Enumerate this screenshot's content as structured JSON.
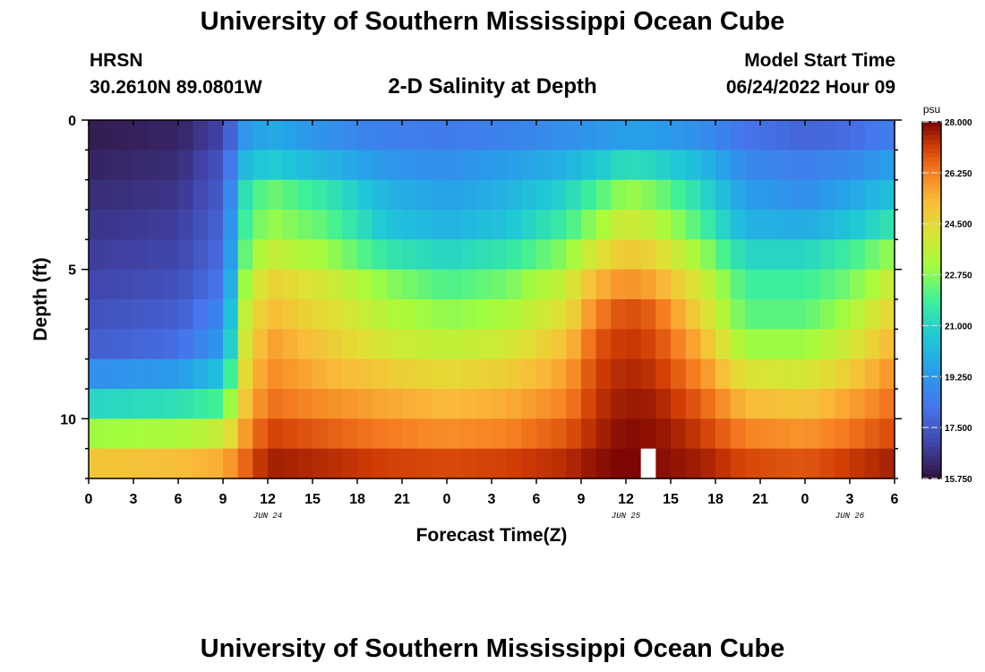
{
  "header": {
    "title": "University of Southern Mississippi Ocean Cube",
    "station": "HRSN",
    "coordinates": "30.2610N  89.0801W",
    "chart_title": "2-D Salinity at Depth",
    "model_start_label": "Model Start Time",
    "model_start_value": "06/24/2022 Hour 09"
  },
  "footer": {
    "title": "University of Southern Mississippi Ocean Cube"
  },
  "chart_data": {
    "type": "heatmap",
    "title": "2-D Salinity at Depth",
    "xlabel": "Forecast Time(Z)",
    "ylabel": "Depth (ft)",
    "x_tick_labels": [
      "0",
      "3",
      "6",
      "9",
      "12",
      "15",
      "18",
      "21",
      "0",
      "3",
      "6",
      "9",
      "12",
      "15",
      "18",
      "21",
      "0",
      "3",
      "6"
    ],
    "x_range_hours": [
      0,
      54
    ],
    "date_labels": [
      {
        "text": "JUN 24",
        "hour": 12
      },
      {
        "text": "JUN 25",
        "hour": 36
      },
      {
        "text": "JUN 26",
        "hour": 51
      }
    ],
    "y_tick_labels": [
      {
        "text": "0",
        "depth": 0
      },
      {
        "text": "5",
        "depth": 5
      },
      {
        "text": "10",
        "depth": 10
      }
    ],
    "ylim": [
      12,
      0
    ],
    "depth_layers_ft": [
      0.5,
      1.5,
      2.5,
      3.5,
      4.5,
      5.5,
      6.5,
      7.5,
      8.5,
      9.5,
      10.5,
      11.5
    ],
    "colorbar": {
      "unit": "psu",
      "min": 15.75,
      "max": 28.0,
      "tick_labels": [
        "28.000",
        "26.250",
        "24.500",
        "22.750",
        "21.000",
        "19.250",
        "17.500",
        "15.750"
      ]
    },
    "time_knots_hours": [
      0,
      6,
      9,
      10.5,
      12,
      16,
      20,
      24,
      28,
      32,
      34,
      36,
      38,
      41,
      44,
      48,
      51,
      54
    ],
    "salinity_psu_rows": [
      [
        16.0,
        16.2,
        17.0,
        19.2,
        19.8,
        19.0,
        18.5,
        18.4,
        18.6,
        19.0,
        19.2,
        19.5,
        19.4,
        19.0,
        18.2,
        17.8,
        18.0,
        18.5
      ],
      [
        16.2,
        16.4,
        17.4,
        20.2,
        20.8,
        20.0,
        19.2,
        19.0,
        19.4,
        20.0,
        20.6,
        21.3,
        21.0,
        20.2,
        18.8,
        18.5,
        18.8,
        19.5
      ],
      [
        16.4,
        16.6,
        17.6,
        21.3,
        22.5,
        21.5,
        20.0,
        19.5,
        20.0,
        21.0,
        22.0,
        23.0,
        22.6,
        21.2,
        19.4,
        19.0,
        19.6,
        20.5
      ],
      [
        16.6,
        16.8,
        17.8,
        21.8,
        23.0,
        22.2,
        20.5,
        20.0,
        20.5,
        21.8,
        23.0,
        24.0,
        23.5,
        22.0,
        20.0,
        19.8,
        20.5,
        21.5
      ],
      [
        16.8,
        17.0,
        18.0,
        22.3,
        23.8,
        23.0,
        21.5,
        21.0,
        21.5,
        22.8,
        24.2,
        25.0,
        24.6,
        23.0,
        21.0,
        21.0,
        21.8,
        23.0
      ],
      [
        17.0,
        17.3,
        18.3,
        23.0,
        24.8,
        24.0,
        22.8,
        22.0,
        22.5,
        23.8,
        25.4,
        26.0,
        25.6,
        24.0,
        21.8,
        21.8,
        22.5,
        24.0
      ],
      [
        17.3,
        17.6,
        18.8,
        23.6,
        25.3,
        24.4,
        23.4,
        22.8,
        23.2,
        24.4,
        26.2,
        27.0,
        26.6,
        24.6,
        22.2,
        22.2,
        23.2,
        24.8
      ],
      [
        17.6,
        18.0,
        19.3,
        24.0,
        25.8,
        24.9,
        24.0,
        23.6,
        24.0,
        25.1,
        26.8,
        27.3,
        27.0,
        25.4,
        23.0,
        23.0,
        24.0,
        25.4
      ],
      [
        19.0,
        19.3,
        20.5,
        24.5,
        26.1,
        25.4,
        24.9,
        24.5,
        24.8,
        25.7,
        27.1,
        27.5,
        27.3,
        26.1,
        24.2,
        24.0,
        24.9,
        26.0
      ],
      [
        21.0,
        21.3,
        22.0,
        25.0,
        26.5,
        26.0,
        25.6,
        25.3,
        25.5,
        26.2,
        27.3,
        27.7,
        27.6,
        26.7,
        25.3,
        25.0,
        25.7,
        26.5
      ],
      [
        23.0,
        23.2,
        23.8,
        25.8,
        27.1,
        26.7,
        26.3,
        26.0,
        26.2,
        26.8,
        27.5,
        27.9,
        27.8,
        27.2,
        26.2,
        25.9,
        26.4,
        27.0
      ],
      [
        25.0,
        25.2,
        25.5,
        26.6,
        27.6,
        27.4,
        27.1,
        27.0,
        27.1,
        27.4,
        27.8,
        28.0,
        27.9,
        27.6,
        27.0,
        26.8,
        27.2,
        27.6
      ]
    ],
    "missing_cells": [
      {
        "hour": 37,
        "layer": 11
      }
    ]
  }
}
